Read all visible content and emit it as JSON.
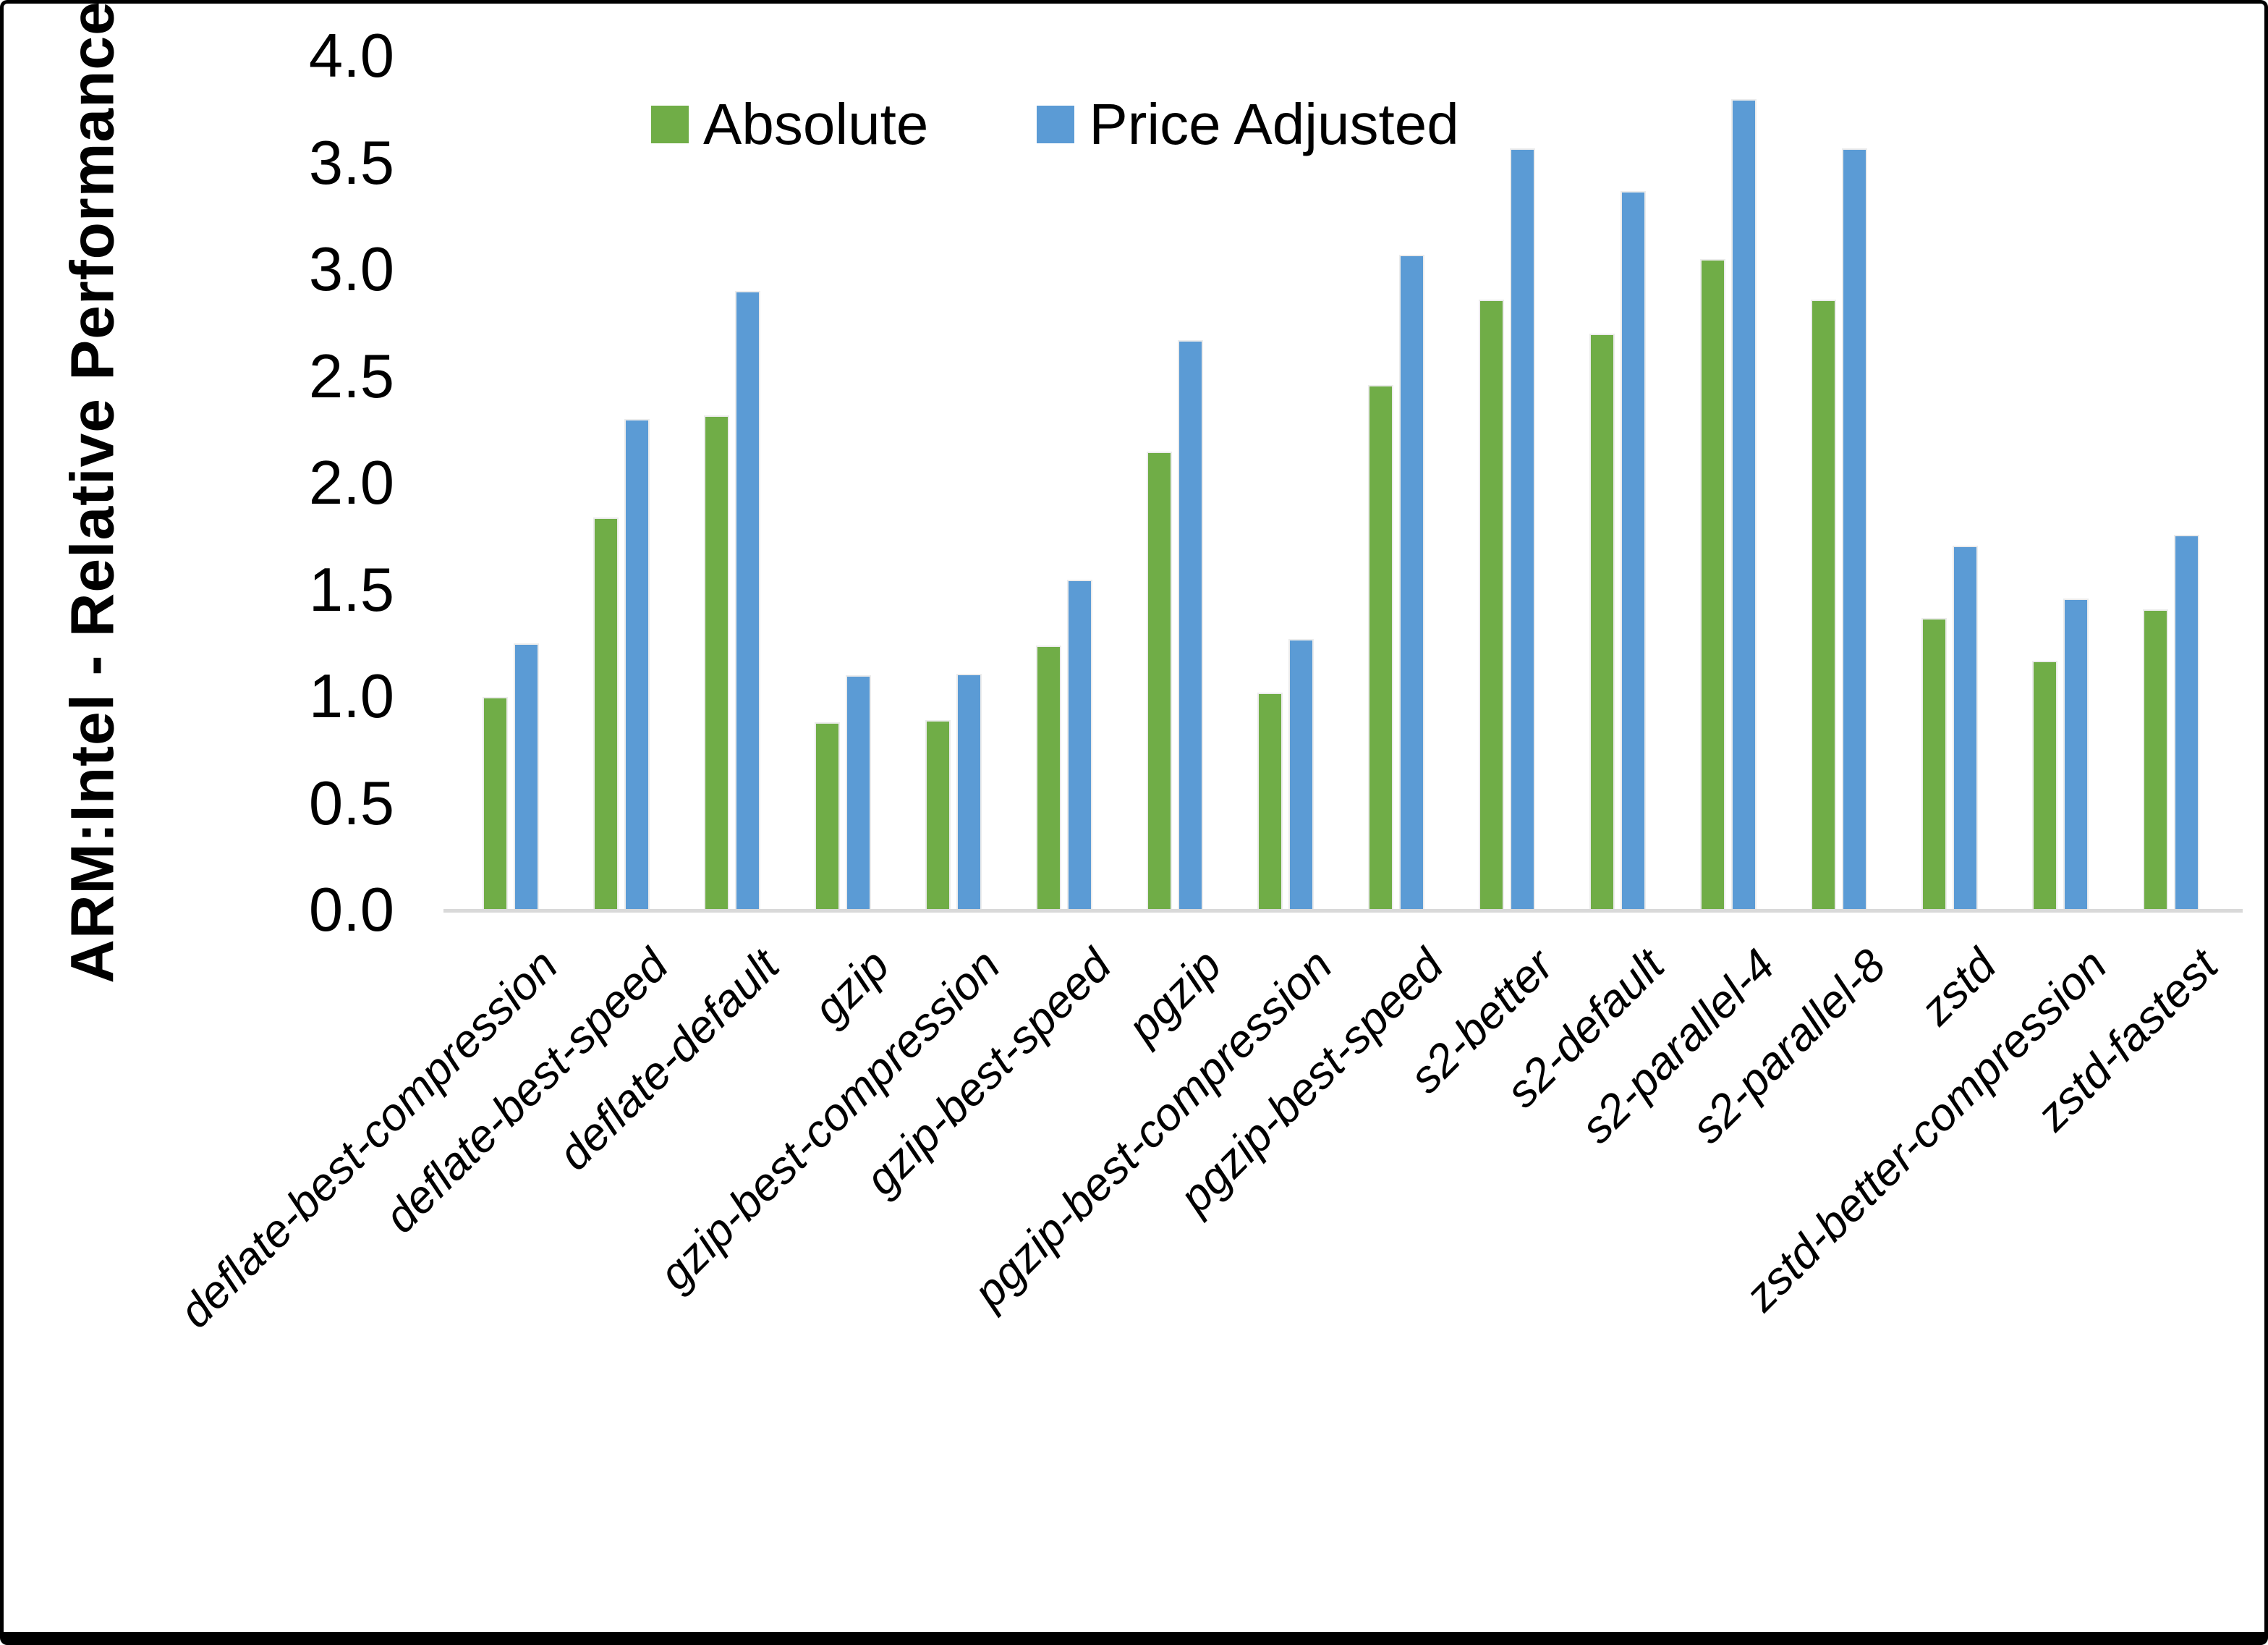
{
  "figure": {
    "background": "#ffffff",
    "axis_line_color": "#d9d9d9",
    "frame_color": "#000000"
  },
  "chart_data": {
    "type": "bar",
    "title": "",
    "xlabel": "",
    "ylabel": "ARM:Intel - Relative Performance",
    "ylim": [
      0.0,
      4.0
    ],
    "ytick_step": 0.5,
    "yticks": [
      "0.0",
      "0.5",
      "1.0",
      "1.5",
      "2.0",
      "2.5",
      "3.0",
      "3.5",
      "4.0"
    ],
    "grid": false,
    "legend_position": "top-center",
    "categories": [
      "deflate-best-compression",
      "deflate-best-speed",
      "deflate-default",
      "gzip",
      "gzip-best-compression",
      "gzip-best-speed",
      "pgzip",
      "pgzip-best-compression",
      "pgzip-best-speed",
      "s2-better",
      "s2-default",
      "s2-parallel-4",
      "s2-parallel-8",
      "zstd",
      "zstd-better-compression",
      "zstd-fastest"
    ],
    "series": [
      {
        "name": "Absolute",
        "color": "#70AD47",
        "values": [
          1.0,
          1.84,
          2.32,
          0.88,
          0.89,
          1.24,
          2.15,
          1.02,
          2.46,
          2.86,
          2.7,
          3.05,
          2.86,
          1.37,
          1.17,
          1.41
        ]
      },
      {
        "name": "Price Adjusted",
        "color": "#5B9BD5",
        "values": [
          1.25,
          2.3,
          2.9,
          1.1,
          1.11,
          1.55,
          2.67,
          1.27,
          3.07,
          3.57,
          3.37,
          3.8,
          3.57,
          1.71,
          1.46,
          1.76
        ]
      }
    ]
  }
}
